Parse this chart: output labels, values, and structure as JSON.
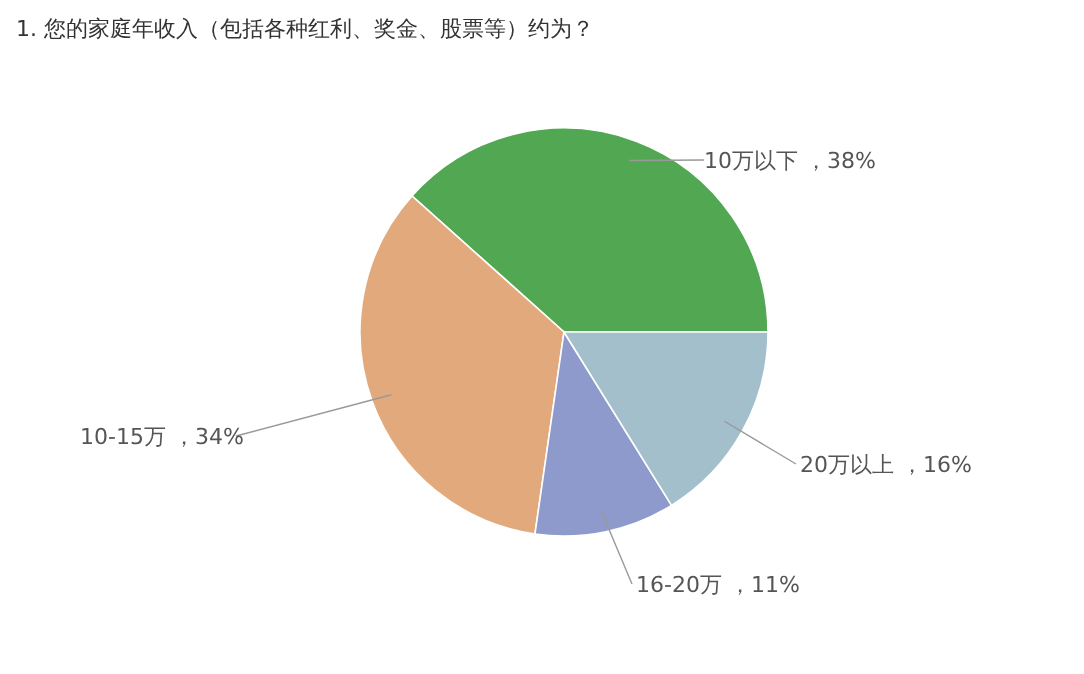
{
  "chart_data": {
    "type": "pie",
    "title": "1. 您的家庭年收入（包括各种红利、奖金、股票等）约为？",
    "categories": [
      "10万以下",
      "10-15万",
      "16-20万",
      "20万以上"
    ],
    "values": [
      38,
      34,
      11,
      16
    ],
    "value_labels": [
      "，38%",
      "，34%",
      "，11%",
      "，16%"
    ],
    "colors": [
      "#52a852",
      "#e2aa7c",
      "#8e9acb",
      "#a2bfcb"
    ]
  }
}
